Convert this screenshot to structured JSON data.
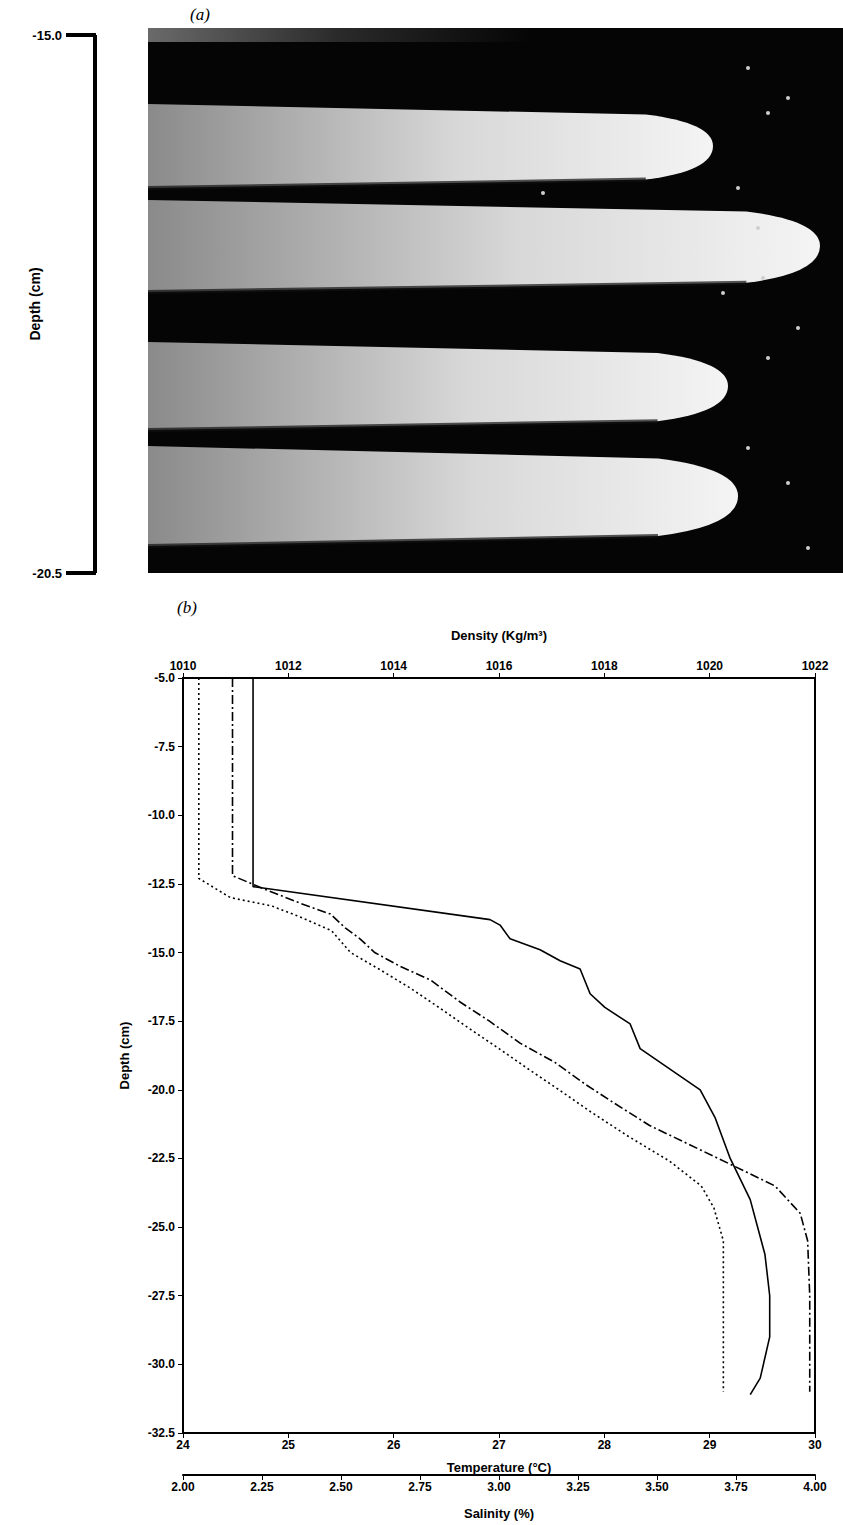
{
  "panel_a": {
    "label": "(a)",
    "axis_title": "Depth (cm)",
    "scale_ends": [
      {
        "value": -15,
        "label": "-15.0"
      },
      {
        "value": -20.5,
        "label": "-20.5"
      }
    ]
  },
  "chart_data": {
    "type": "line",
    "title": "(b)",
    "grid": false,
    "ylabel": "Depth (cm)",
    "ylim": [
      -32.5,
      -5
    ],
    "yticks": [
      {
        "value": -32.5,
        "label": "-32.5"
      },
      {
        "value": -30,
        "label": "-30.0"
      },
      {
        "value": -27.5,
        "label": "-27.5"
      },
      {
        "value": -25,
        "label": "-25.0"
      },
      {
        "value": -22.5,
        "label": "-22.5"
      },
      {
        "value": -20,
        "label": "-20.0"
      },
      {
        "value": -17.5,
        "label": "-17.5"
      },
      {
        "value": -15,
        "label": "-15.0"
      },
      {
        "value": -12.5,
        "label": "-12.5"
      },
      {
        "value": -10,
        "label": "-10.0"
      },
      {
        "value": -7.5,
        "label": "-7.5"
      },
      {
        "value": -5,
        "label": "-5.0"
      }
    ],
    "xlabel": "Density (Kg/m³)",
    "xlim": [
      1010,
      1022
    ],
    "xticks": [
      1010,
      1012,
      1014,
      1016,
      1018,
      1020,
      1022
    ],
    "x2label": "Temperature (°C)",
    "x2lim": [
      24,
      30
    ],
    "x2ticks": [
      24,
      25,
      26,
      27,
      28,
      29,
      30
    ],
    "x3label": "Salinity (%)",
    "x3lim": [
      2,
      4
    ],
    "x3ticks": [
      {
        "value": 2,
        "label": "2.00"
      },
      {
        "value": 2.25,
        "label": "2.25"
      },
      {
        "value": 2.5,
        "label": "2.50"
      },
      {
        "value": 2.75,
        "label": "2.75"
      },
      {
        "value": 3,
        "label": "3.00"
      },
      {
        "value": 3.25,
        "label": "3.25"
      },
      {
        "value": 3.5,
        "label": "3.50"
      },
      {
        "value": 3.75,
        "label": "3.75"
      },
      {
        "value": 4,
        "label": "4.00"
      }
    ],
    "series": [
      {
        "axis": "x",
        "color": "#000000",
        "line_style": "solid",
        "x": [
          1011.33,
          1011.33,
          1015.83,
          1016.02,
          1016.21,
          1016.78,
          1017.16,
          1017.54,
          1017.73,
          1018.01,
          1018.49,
          1018.68,
          1019.06,
          1019.44,
          1019.82,
          1020.1,
          1020.39,
          1020.77,
          1021.05,
          1021.14,
          1021.14,
          1020.96,
          1020.77
        ],
        "y": [
          -5.0,
          -12.6,
          -13.8,
          -14.0,
          -14.5,
          -14.9,
          -15.3,
          -15.6,
          -16.5,
          -17.0,
          -17.6,
          -18.5,
          -19.0,
          -19.5,
          -20.0,
          -21.0,
          -22.5,
          -24.0,
          -26.0,
          -27.5,
          -29.0,
          -30.5,
          -31.1
        ]
      },
      {
        "axis": "x2",
        "color": "#000000",
        "line_style": "dashdot",
        "x": [
          24.47,
          24.47,
          24.78,
          25.11,
          25.4,
          25.54,
          25.68,
          25.82,
          26.06,
          26.35,
          26.63,
          26.91,
          27.2,
          27.53,
          27.82,
          28.1,
          28.43,
          28.81,
          29.19,
          29.62,
          29.86,
          29.93,
          29.95,
          29.95
        ],
        "y": [
          -5.0,
          -12.2,
          -12.7,
          -13.2,
          -13.6,
          -14.1,
          -14.5,
          -15.0,
          -15.5,
          -16.0,
          -16.8,
          -17.5,
          -18.3,
          -19.0,
          -19.8,
          -20.5,
          -21.3,
          -22.0,
          -22.7,
          -23.5,
          -24.5,
          -25.5,
          -27.5,
          -31.0
        ]
      },
      {
        "axis": "x3",
        "color": "#000000",
        "line_style": "dotted",
        "x": [
          2.05,
          2.05,
          2.15,
          2.28,
          2.37,
          2.47,
          2.53,
          2.62,
          2.72,
          2.81,
          2.91,
          3.0,
          3.1,
          3.19,
          3.29,
          3.41,
          3.54,
          3.64,
          3.68,
          3.71,
          3.71,
          3.71
        ],
        "y": [
          -5.0,
          -12.3,
          -13.0,
          -13.3,
          -13.7,
          -14.2,
          -15.0,
          -15.6,
          -16.3,
          -17.0,
          -17.8,
          -18.5,
          -19.3,
          -20.0,
          -20.8,
          -21.7,
          -22.6,
          -23.5,
          -24.3,
          -25.5,
          -27.0,
          -31.0
        ]
      }
    ]
  }
}
